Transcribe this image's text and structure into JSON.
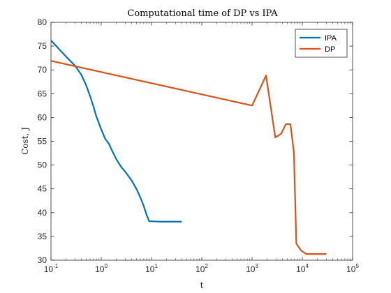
{
  "chart_data": {
    "type": "line",
    "title": "Computational time of DP vs IPA",
    "xlabel": "t",
    "ylabel": "Cost, J",
    "xscale": "log",
    "xlim": [
      0.1,
      100000
    ],
    "ylim": [
      30,
      80
    ],
    "x_ticks": [
      {
        "value": 0.1,
        "base": "10",
        "exp": "-1"
      },
      {
        "value": 1,
        "base": "10",
        "exp": "0"
      },
      {
        "value": 10,
        "base": "10",
        "exp": "1"
      },
      {
        "value": 100,
        "base": "10",
        "exp": "2"
      },
      {
        "value": 1000,
        "base": "10",
        "exp": "3"
      },
      {
        "value": 10000,
        "base": "10",
        "exp": "4"
      },
      {
        "value": 100000,
        "base": "10",
        "exp": "5"
      }
    ],
    "y_ticks": [
      30,
      35,
      40,
      45,
      50,
      55,
      60,
      65,
      70,
      75,
      80
    ],
    "grid": false,
    "legend_position": "top-right",
    "series": [
      {
        "name": "IPA",
        "color": "#0072BD",
        "points": [
          [
            0.1,
            76.2
          ],
          [
            0.2,
            72.8
          ],
          [
            0.3,
            70.9
          ],
          [
            0.4,
            69.0
          ],
          [
            0.5,
            66.8
          ],
          [
            0.6,
            64.5
          ],
          [
            0.7,
            62.3
          ],
          [
            0.8,
            60.2
          ],
          [
            1.0,
            57.5
          ],
          [
            1.2,
            55.5
          ],
          [
            1.4,
            54.6
          ],
          [
            1.7,
            52.7
          ],
          [
            2.0,
            51.2
          ],
          [
            2.5,
            49.6
          ],
          [
            3.0,
            48.6
          ],
          [
            4.0,
            46.8
          ],
          [
            5.0,
            45.0
          ],
          [
            6.0,
            43.2
          ],
          [
            7.0,
            41.4
          ],
          [
            8.0,
            39.5
          ],
          [
            9.0,
            38.2
          ],
          [
            15,
            38.1
          ],
          [
            40,
            38.1
          ]
        ]
      },
      {
        "name": "DP",
        "color": "#D95319",
        "points": [
          [
            0.1,
            71.9
          ],
          [
            1000,
            62.5
          ],
          [
            1900,
            68.8
          ],
          [
            2900,
            55.8
          ],
          [
            3800,
            56.6
          ],
          [
            4700,
            58.6
          ],
          [
            5800,
            58.6
          ],
          [
            6800,
            52.7
          ],
          [
            7600,
            33.5
          ],
          [
            9500,
            32.0
          ],
          [
            12000,
            31.3
          ],
          [
            20000,
            31.3
          ],
          [
            30000,
            31.3
          ]
        ]
      }
    ]
  }
}
